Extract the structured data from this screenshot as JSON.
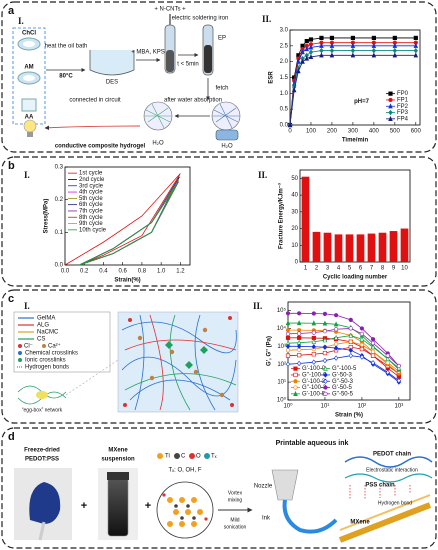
{
  "panels": {
    "a": {
      "label": "a",
      "sub": [
        "I.",
        "II."
      ],
      "texts": [
        "ChCl",
        "AM",
        "AA",
        "heat the oil bath",
        "80°C",
        "DES",
        "+ MBA, KPS",
        "+ N-CNTs +",
        "electric soldering iron",
        "t < 5min",
        "EP",
        "fetch",
        "H₂O",
        "connected in circuit",
        "after water absorption",
        "H₂O",
        "conductive composite hydrogel"
      ]
    },
    "b": {
      "label": "b",
      "sub": [
        "I.",
        "II."
      ]
    },
    "c": {
      "label": "c",
      "sub": [
        "I.",
        "II."
      ],
      "texts": [
        "GelMA",
        "ALG",
        "NaCMC",
        "CS",
        "Cl⁻",
        "Ca²⁺",
        "Chemical crosslinks",
        "Ionic crosslinks",
        "Hydrogen bonds",
        "“egg-box” network"
      ]
    },
    "d": {
      "label": "d",
      "texts": [
        "Freeze-dried",
        "PEDOT:PSS",
        "+",
        "MXene",
        "suspension",
        "+",
        "Ti",
        "C",
        "O",
        "Tₓ",
        "Tₓ: O, OH, F",
        "Vortex",
        "mixing",
        "Mild",
        "sonication",
        "Printable aqueous ink",
        "Nozzle",
        "Ink",
        "PEDOT chain",
        "Electrostatic interaction",
        "PSS chain",
        "Hydrogen bond",
        "MXene"
      ]
    }
  },
  "chart_data": [
    {
      "type": "line",
      "xlabel": "Time/min",
      "ylabel": "ESR",
      "annotation": "pH=7",
      "x": [
        0,
        20,
        40,
        60,
        80,
        100,
        150,
        200,
        300,
        400,
        500,
        600
      ],
      "xlim": [
        0,
        620
      ],
      "xticks": [
        0,
        100,
        200,
        300,
        400,
        500,
        600
      ],
      "ylim": [
        0,
        3.0
      ],
      "yticks": [
        {
          "value": 0,
          "label": "0.0"
        },
        0.5,
        {
          "value": 1,
          "label": "1.0"
        },
        1.5,
        {
          "value": 2,
          "label": "2.0"
        },
        2.5,
        {
          "value": 3,
          "label": "3.0"
        }
      ],
      "legend": "lower right",
      "markers": true,
      "series": [
        {
          "name": "FP0",
          "color": "#000000",
          "marker": "square",
          "values": [
            0,
            1.5,
            2.2,
            2.5,
            2.65,
            2.7,
            2.75,
            2.75,
            2.75,
            2.75,
            2.75,
            2.75
          ]
        },
        {
          "name": "FP1",
          "color": "#e01010",
          "marker": "circle",
          "values": [
            0,
            1.4,
            2.1,
            2.4,
            2.5,
            2.55,
            2.6,
            2.6,
            2.6,
            2.6,
            2.6,
            2.6
          ]
        },
        {
          "name": "FP2",
          "color": "#1030e0",
          "marker": "triangle",
          "values": [
            0,
            1.3,
            2.0,
            2.3,
            2.4,
            2.45,
            2.5,
            2.5,
            2.5,
            2.5,
            2.5,
            2.5
          ]
        },
        {
          "name": "FP3",
          "color": "#0a8a7a",
          "marker": "diamond",
          "values": [
            0,
            1.2,
            1.8,
            2.1,
            2.2,
            2.3,
            2.35,
            2.35,
            2.35,
            2.35,
            2.35,
            2.35
          ]
        },
        {
          "name": "FP4",
          "color": "#1a1a80",
          "marker": "triangle",
          "values": [
            0,
            1.1,
            1.7,
            2.0,
            2.1,
            2.15,
            2.2,
            2.2,
            2.2,
            2.2,
            2.2,
            2.2
          ]
        }
      ]
    },
    {
      "type": "line",
      "xlabel": "Strain(%)",
      "ylabel": "Stress(MPa)",
      "xlim": [
        0,
        1.3
      ],
      "xticks": [
        {
          "value": 0,
          "label": "0.0"
        },
        0.2,
        0.4,
        0.6,
        0.8,
        {
          "value": 1,
          "label": "1.0"
        },
        1.2
      ],
      "ylim": [
        0,
        0.3
      ],
      "yticks": [
        {
          "value": 0,
          "label": "0.0"
        },
        0.1,
        0.2,
        0.3
      ],
      "legend": "upper left",
      "markers": false,
      "series": [
        {
          "name": "1st cycle",
          "color": "#e01010",
          "x": [
            0,
            0.4,
            0.8,
            1.2,
            0.8,
            0.4,
            0.15
          ],
          "values": [
            0,
            0.07,
            0.15,
            0.28,
            0.09,
            0.03,
            0
          ]
        },
        {
          "name": "2nd cycle",
          "color": "#000000",
          "x": [
            0.15,
            0.5,
            0.9,
            1.19,
            0.9,
            0.5,
            0.15
          ],
          "values": [
            0,
            0.05,
            0.13,
            0.27,
            0.1,
            0.035,
            0
          ]
        },
        {
          "name": "3rd cycle",
          "color": "#1030e0",
          "x": [
            0.15,
            0.5,
            0.9,
            1.18,
            0.9,
            0.5,
            0.15
          ],
          "values": [
            0,
            0.05,
            0.13,
            0.265,
            0.1,
            0.035,
            0
          ]
        },
        {
          "name": "4th cycle",
          "color": "#d020d0",
          "x": [
            0.15,
            0.5,
            0.9,
            1.18,
            0.9,
            0.5,
            0.15
          ],
          "values": [
            0,
            0.05,
            0.13,
            0.26,
            0.1,
            0.035,
            0
          ]
        },
        {
          "name": "5th cycle",
          "color": "#8a8a00",
          "x": [
            0.15,
            0.5,
            0.9,
            1.18,
            0.9,
            0.5,
            0.15
          ],
          "values": [
            0,
            0.05,
            0.13,
            0.26,
            0.1,
            0.035,
            0
          ]
        },
        {
          "name": "6th cycle",
          "color": "#1a1a80",
          "x": [
            0.15,
            0.5,
            0.9,
            1.18,
            0.9,
            0.5,
            0.15
          ],
          "values": [
            0,
            0.05,
            0.13,
            0.255,
            0.1,
            0.035,
            0
          ]
        },
        {
          "name": "7th cycle",
          "color": "#7a20a0",
          "x": [
            0.15,
            0.5,
            0.9,
            1.18,
            0.9,
            0.5,
            0.15
          ],
          "values": [
            0,
            0.05,
            0.13,
            0.255,
            0.1,
            0.035,
            0
          ]
        },
        {
          "name": "8th cycle",
          "color": "#8a4010",
          "x": [
            0.15,
            0.5,
            0.9,
            1.17,
            0.9,
            0.5,
            0.15
          ],
          "values": [
            0,
            0.05,
            0.13,
            0.25,
            0.1,
            0.035,
            0
          ]
        },
        {
          "name": "9th cycle",
          "color": "#e070a0",
          "x": [
            0.15,
            0.5,
            0.9,
            1.17,
            0.9,
            0.5,
            0.15
          ],
          "values": [
            0,
            0.05,
            0.13,
            0.25,
            0.1,
            0.035,
            0
          ]
        },
        {
          "name": "10th cycle",
          "color": "#10a040",
          "x": [
            0.15,
            0.5,
            0.9,
            1.17,
            0.9,
            0.5,
            0.15
          ],
          "values": [
            0,
            0.05,
            0.13,
            0.25,
            0.1,
            0.035,
            0
          ]
        }
      ]
    },
    {
      "type": "bar",
      "xlabel": "Cyclic loading number",
      "ylabel": "Fracture Energy/KJm⁻³",
      "categories": [
        "1",
        "2",
        "3",
        "4",
        "5",
        "6",
        "7",
        "8",
        "9",
        "10"
      ],
      "values": [
        51,
        18,
        17.5,
        16.5,
        16.5,
        16.5,
        17,
        17.5,
        18.5,
        20
      ],
      "color": "#e01010",
      "ylim": [
        0,
        55
      ],
      "yticks": [
        0,
        10,
        20,
        30,
        40,
        50
      ]
    },
    {
      "type": "line",
      "xlabel": "Strain (%)",
      "ylabel": "G', G'' (Pa)",
      "xlog": true,
      "ylog": true,
      "x": [
        1,
        2,
        5,
        10,
        20,
        50,
        100,
        200,
        500,
        1000
      ],
      "xlim": [
        1,
        2000
      ],
      "xticks": [
        {
          "value": 1,
          "label": "10⁰"
        },
        {
          "value": 10,
          "label": "10¹"
        },
        {
          "value": 100,
          "label": "10²"
        },
        {
          "value": 1000,
          "label": "10³"
        }
      ],
      "ylim": [
        1,
        300000
      ],
      "yticks": [
        {
          "value": 1,
          "label": "10⁰"
        },
        {
          "value": 10,
          "label": "10¹"
        },
        {
          "value": 100,
          "label": "10²"
        },
        {
          "value": 1000,
          "label": "10³"
        },
        {
          "value": 10000,
          "label": "10⁴"
        },
        {
          "value": 100000,
          "label": "10⁵"
        }
      ],
      "legend": "lower left",
      "legend_columns": 2,
      "markers": true,
      "series": [
        {
          "name": "G'-100-0",
          "color": "#e01010",
          "marker": "square",
          "filled": true,
          "values": [
            3000,
            3000,
            2900,
            2800,
            2500,
            1800,
            900,
            300,
            60,
            20
          ]
        },
        {
          "name": "G''-100-0",
          "color": "#e01010",
          "marker": "square",
          "filled": false,
          "values": [
            300,
            320,
            360,
            420,
            600,
            900,
            700,
            300,
            80,
            30
          ]
        },
        {
          "name": "G'-100-3",
          "color": "#f08000",
          "marker": "circle",
          "filled": true,
          "values": [
            8000,
            8000,
            7800,
            7500,
            6500,
            4000,
            1800,
            500,
            100,
            30
          ]
        },
        {
          "name": "G''-100-3",
          "color": "#f08000",
          "marker": "circle",
          "filled": false,
          "values": [
            600,
            650,
            700,
            900,
            1300,
            1800,
            1200,
            500,
            120,
            40
          ]
        },
        {
          "name": "G'-100-5",
          "color": "#10a040",
          "marker": "triangle",
          "filled": true,
          "values": [
            20000,
            20000,
            19500,
            19000,
            17000,
            11000,
            4000,
            1000,
            200,
            50
          ]
        },
        {
          "name": "G''-100-5",
          "color": "#10a040",
          "marker": "triangle",
          "filled": false,
          "values": [
            1500,
            1600,
            1800,
            2200,
            3000,
            4000,
            2500,
            900,
            200,
            60
          ]
        },
        {
          "name": "G'-50-3",
          "color": "#1030e0",
          "marker": "diamond",
          "filled": true,
          "values": [
            1000,
            1000,
            950,
            900,
            800,
            600,
            300,
            100,
            30,
            10
          ]
        },
        {
          "name": "G''-50-3",
          "color": "#1030e0",
          "marker": "diamond",
          "filled": false,
          "values": [
            100,
            110,
            130,
            160,
            220,
            300,
            250,
            120,
            35,
            12
          ]
        },
        {
          "name": "G'-50-5",
          "color": "#8a20b0",
          "marker": "circle",
          "filled": true,
          "values": [
            70000,
            70000,
            68000,
            65000,
            55000,
            30000,
            10000,
            2500,
            400,
            80
          ]
        },
        {
          "name": "G''-50-5",
          "color": "#8a20b0",
          "marker": "circle",
          "filled": false,
          "values": [
            5000,
            5200,
            5800,
            7000,
            9000,
            10000,
            5000,
            1500,
            300,
            80
          ]
        }
      ]
    }
  ]
}
